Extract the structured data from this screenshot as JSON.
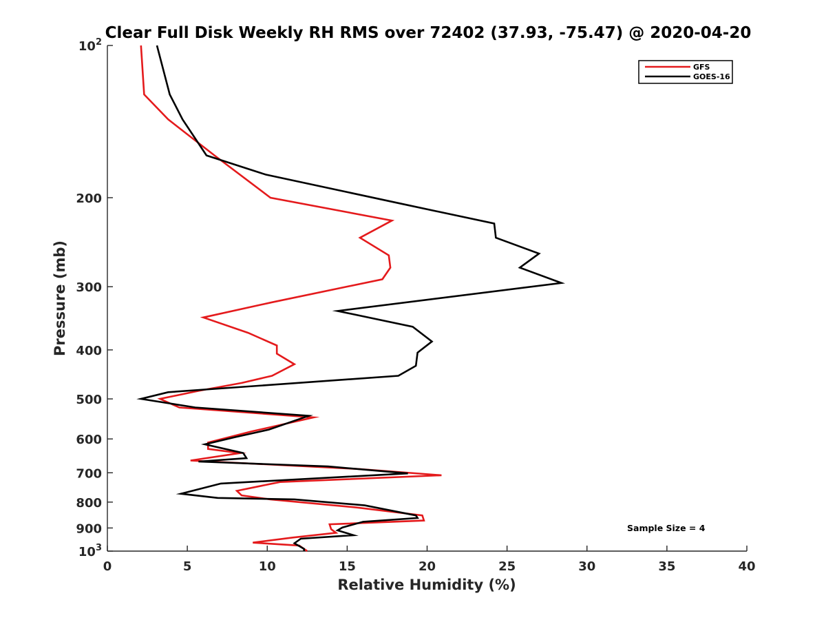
{
  "chart_data": {
    "type": "line",
    "title": "Clear Full Disk Weekly RH RMS over 72402 (37.93, -75.47) @ 2020-04-20",
    "xlabel": "Relative Humidity (%)",
    "ylabel": "Pressure (mb)",
    "xlim": [
      0,
      40
    ],
    "ylim": [
      100,
      1000
    ],
    "yscale": "log",
    "y_reversed": true,
    "xticks": [
      0,
      5,
      10,
      15,
      20,
      25,
      30,
      35,
      40
    ],
    "xtick_labels": [
      "0",
      "5",
      "10",
      "15",
      "20",
      "25",
      "30",
      "35",
      "40"
    ],
    "yticks": [
      100,
      200,
      300,
      400,
      500,
      600,
      700,
      800,
      900,
      1000
    ],
    "ytick_labels": [
      {
        "base": "10",
        "exp": "2"
      },
      {
        "base": "200",
        "exp": ""
      },
      {
        "base": "300",
        "exp": ""
      },
      {
        "base": "400",
        "exp": ""
      },
      {
        "base": "500",
        "exp": ""
      },
      {
        "base": "600",
        "exp": ""
      },
      {
        "base": "700",
        "exp": ""
      },
      {
        "base": "800",
        "exp": ""
      },
      {
        "base": "900",
        "exp": ""
      },
      {
        "base": "10",
        "exp": "3"
      }
    ],
    "legend_position": "top-right",
    "annotation": "Sample Size = 4",
    "series": [
      {
        "name": "GFS",
        "color": "#e41a1c",
        "x": [
          2.1,
          2.3,
          3.8,
          6.7,
          10.2,
          17.8,
          15.8,
          17.6,
          17.7,
          17.2,
          10.3,
          6.0,
          8.8,
          10.6,
          10.6,
          11.7,
          10.3,
          8.4,
          5.7,
          3.3,
          4.5,
          12.9,
          9.0,
          6.3,
          6.3,
          8.3,
          5.2,
          15.7,
          20.9,
          10.8,
          8.1,
          8.4,
          10.2,
          15.6,
          19.7,
          19.8,
          13.9,
          14.0,
          14.3,
          11.6,
          9.1,
          12.0,
          12.3,
          12.5
        ],
        "y": [
          100,
          125,
          140,
          165,
          200,
          222,
          240,
          260,
          275,
          290,
          322,
          345,
          370,
          392,
          407,
          427,
          450,
          465,
          482,
          500,
          520,
          544,
          580,
          610,
          628,
          640,
          662,
          688,
          708,
          730,
          760,
          776,
          790,
          820,
          850,
          870,
          885,
          905,
          920,
          940,
          962,
          975,
          990,
          1000
        ]
      },
      {
        "name": "GOES-16",
        "color": "#000000",
        "x": [
          3.1,
          3.9,
          4.7,
          6.2,
          9.9,
          18.2,
          24.2,
          24.3,
          27.0,
          25.8,
          28.4,
          14.4,
          19.1,
          20.3,
          19.4,
          19.3,
          18.2,
          3.8,
          2.1,
          5.5,
          12.6,
          10.1,
          8.0,
          6.1,
          8.5,
          8.7,
          5.7,
          13.8,
          18.8,
          7.1,
          4.6,
          6.9,
          11.7,
          16.1,
          19.3,
          19.4,
          16.0,
          14.7,
          14.4,
          15.4,
          12.1,
          11.7,
          12.3,
          12.3
        ],
        "y": [
          100,
          125,
          140,
          165,
          180,
          205,
          225,
          240,
          258,
          275,
          295,
          335,
          360,
          385,
          405,
          430,
          450,
          485,
          500,
          520,
          540,
          575,
          595,
          615,
          640,
          655,
          665,
          680,
          702,
          735,
          770,
          785,
          790,
          812,
          850,
          860,
          875,
          898,
          910,
          930,
          945,
          965,
          990,
          1000
        ]
      }
    ]
  }
}
